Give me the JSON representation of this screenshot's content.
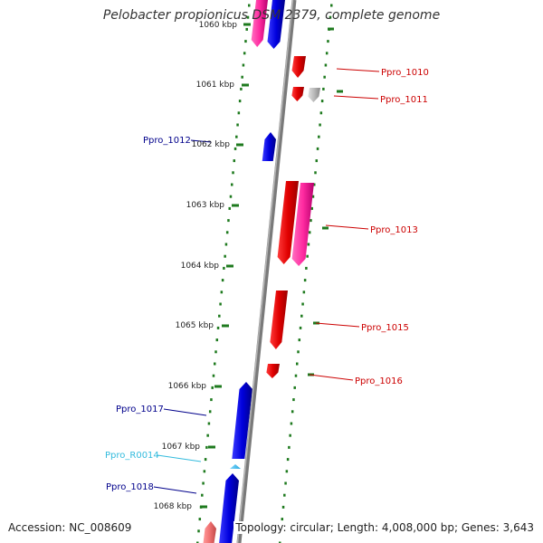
{
  "title": "Pelobacter propionicus DSM 2379, complete genome",
  "footer": {
    "accession": "Accession: NC_008609",
    "summary": "Topology: circular; Length: 4,008,000 bp; Genes: 3,643"
  },
  "colors": {
    "axis": "#8a8a8a",
    "tick": "#1e7a1e",
    "plus_strand_label": "#cc0000",
    "minus_strand_label": "#00008b",
    "rna_label": "#33bbdd"
  },
  "scale": {
    "unit": "kbp",
    "ticks": [
      {
        "label": "1060 kbp"
      },
      {
        "label": "1061 kbp"
      },
      {
        "label": "1062 kbp"
      },
      {
        "label": "1063 kbp"
      },
      {
        "label": "1064 kbp"
      },
      {
        "label": "1065 kbp"
      },
      {
        "label": "1066 kbp"
      },
      {
        "label": "1067 kbp"
      },
      {
        "label": "1068 kbp"
      }
    ]
  },
  "gene_labels": [
    {
      "name": "Ppro_1010",
      "strand": "plus"
    },
    {
      "name": "Ppro_1011",
      "strand": "plus"
    },
    {
      "name": "Ppro_1012",
      "strand": "minus"
    },
    {
      "name": "Ppro_1013",
      "strand": "plus"
    },
    {
      "name": "Ppro_1015",
      "strand": "plus"
    },
    {
      "name": "Ppro_1016",
      "strand": "plus"
    },
    {
      "name": "Ppro_1017",
      "strand": "minus"
    },
    {
      "name": "Ppro_R0014",
      "strand": "rna"
    },
    {
      "name": "Ppro_1018",
      "strand": "minus"
    }
  ]
}
